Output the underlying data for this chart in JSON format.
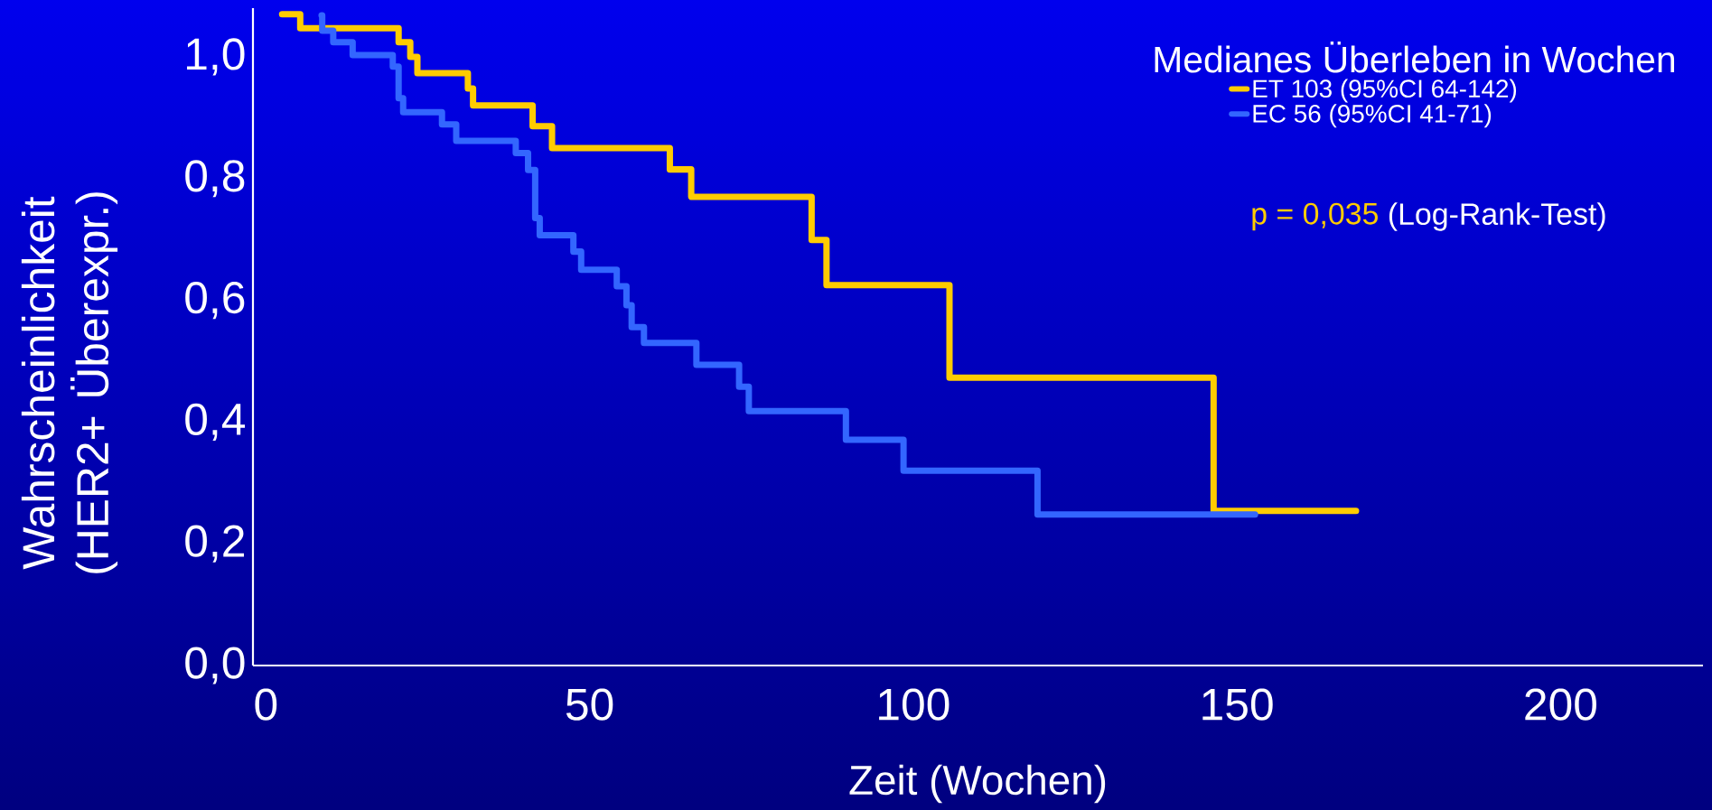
{
  "chart_data": {
    "type": "step",
    "xlabel": "Zeit (Wochen)",
    "ylabel": "Wahrscheinlichkeit (HER2+ Überexpr.)",
    "legend_title": "Medianes Überleben in Wochen",
    "legend": "top right",
    "annotations": [
      "p = 0,035",
      "(Log-Rank-Test)"
    ],
    "xlim": [
      -2,
      222
    ],
    "ylim": [
      0,
      1.08
    ],
    "xticks": [
      0,
      50,
      100,
      150,
      200
    ],
    "yticks": [
      {
        "value": 0,
        "label": "0,0"
      },
      {
        "value": 0.2,
        "label": "0,2"
      },
      {
        "value": 0.4,
        "label": "0,4"
      },
      {
        "value": 0.6,
        "label": "0,6"
      },
      {
        "value": 0.8,
        "label": "0,8"
      },
      {
        "value": 1.0,
        "label": "1,0"
      }
    ],
    "series": [
      {
        "name": "ET 103  (95%CI 64-142)",
        "color": "#ffcc00",
        "x": [
          2.5,
          5.3,
          20.5,
          22.3,
          23.4,
          31.2,
          32.0,
          41.2,
          44.2,
          62.4,
          65.7,
          84.3,
          86.6,
          105.6,
          146.4,
          168.4
        ],
        "values": [
          1.07,
          1.047,
          1.024,
          1.0,
          0.973,
          0.948,
          0.92,
          0.886,
          0.85,
          0.815,
          0.77,
          0.699,
          0.625,
          0.473,
          0.254,
          0.254
        ]
      },
      {
        "name": "EC   56  (95%CI 41-71)",
        "color": "#3366ff",
        "x": [
          8.6,
          8.7,
          10.4,
          13.4,
          19.6,
          20.5,
          21.2,
          27.2,
          29.4,
          38.6,
          40.5,
          41.6,
          42.3,
          47.5,
          48.7,
          54.2,
          55.7,
          56.5,
          58.4,
          66.5,
          73.1,
          74.6,
          89.6,
          98.5,
          119.2,
          152.8
        ],
        "values": [
          1.068,
          1.043,
          1.024,
          1.003,
          0.984,
          0.932,
          0.909,
          0.889,
          0.862,
          0.842,
          0.814,
          0.735,
          0.707,
          0.68,
          0.65,
          0.623,
          0.592,
          0.556,
          0.53,
          0.494,
          0.458,
          0.418,
          0.371,
          0.32,
          0.248,
          0.248
        ]
      }
    ]
  }
}
